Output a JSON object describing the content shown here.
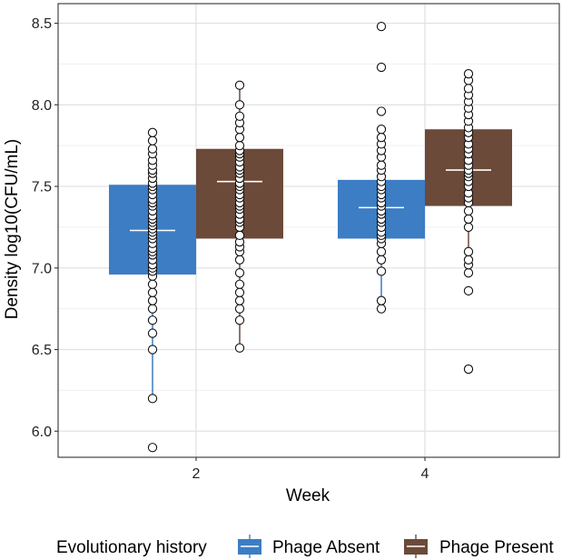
{
  "chart_data": {
    "type": "boxplot",
    "xlabel": "Week",
    "ylabel": "Density log10(CFU/mL)",
    "x_ticks": [
      "2",
      "4"
    ],
    "y_ticks": [
      "6.0",
      "6.5",
      "7.0",
      "7.5",
      "8.0",
      "8.5"
    ],
    "ylim": [
      5.84,
      8.62
    ],
    "legend": {
      "title": "Evolutionary history",
      "position": "bottom",
      "entries": [
        {
          "label": "Phage Absent",
          "color": "#3c7dc4"
        },
        {
          "label": "Phage Present",
          "color": "#6b4a3a"
        }
      ]
    },
    "series": [
      {
        "name": "Phage Absent",
        "color": "#3c7dc4",
        "groups": [
          {
            "week": "2",
            "q1": 6.96,
            "median": 7.23,
            "q3": 7.51,
            "whisker_low": 6.2,
            "whisker_high": 7.83,
            "points": [
              5.9,
              6.2,
              6.5,
              6.6,
              6.68,
              6.75,
              6.8,
              6.85,
              6.9,
              6.95,
              6.98,
              7.0,
              7.02,
              7.05,
              7.08,
              7.1,
              7.12,
              7.15,
              7.18,
              7.2,
              7.22,
              7.24,
              7.26,
              7.28,
              7.3,
              7.32,
              7.35,
              7.38,
              7.4,
              7.42,
              7.45,
              7.48,
              7.5,
              7.52,
              7.55,
              7.58,
              7.6,
              7.63,
              7.66,
              7.7,
              7.73,
              7.78,
              7.83
            ]
          },
          {
            "week": "4",
            "q1": 7.18,
            "median": 7.37,
            "q3": 7.54,
            "whisker_low": 6.75,
            "whisker_high": 7.85,
            "points": [
              6.75,
              6.8,
              6.98,
              7.05,
              7.1,
              7.15,
              7.18,
              7.2,
              7.22,
              7.25,
              7.28,
              7.3,
              7.33,
              7.35,
              7.38,
              7.4,
              7.43,
              7.45,
              7.48,
              7.5,
              7.53,
              7.56,
              7.6,
              7.63,
              7.68,
              7.72,
              7.76,
              7.8,
              7.85,
              7.96,
              8.23,
              8.48
            ]
          }
        ]
      },
      {
        "name": "Phage Present",
        "color": "#6b4a3a",
        "groups": [
          {
            "week": "2",
            "q1": 7.18,
            "median": 7.53,
            "q3": 7.73,
            "whisker_low": 6.51,
            "whisker_high": 8.12,
            "points": [
              6.51,
              6.68,
              6.75,
              6.8,
              6.85,
              6.9,
              6.97,
              7.05,
              7.1,
              7.13,
              7.16,
              7.2,
              7.25,
              7.28,
              7.3,
              7.33,
              7.36,
              7.38,
              7.4,
              7.43,
              7.45,
              7.48,
              7.5,
              7.52,
              7.55,
              7.58,
              7.6,
              7.62,
              7.65,
              7.68,
              7.7,
              7.72,
              7.75,
              7.8,
              7.85,
              7.89,
              7.93,
              8.0,
              8.12
            ]
          },
          {
            "week": "4",
            "q1": 7.38,
            "median": 7.6,
            "q3": 7.85,
            "whisker_low": 6.97,
            "whisker_high": 8.19,
            "points": [
              6.38,
              6.86,
              6.97,
              7.02,
              7.05,
              7.1,
              7.25,
              7.3,
              7.35,
              7.4,
              7.43,
              7.46,
              7.5,
              7.53,
              7.56,
              7.58,
              7.6,
              7.63,
              7.66,
              7.7,
              7.73,
              7.76,
              7.8,
              7.83,
              7.86,
              7.9,
              7.94,
              7.98,
              8.02,
              8.06,
              8.1,
              8.15,
              8.19
            ]
          }
        ]
      }
    ]
  }
}
